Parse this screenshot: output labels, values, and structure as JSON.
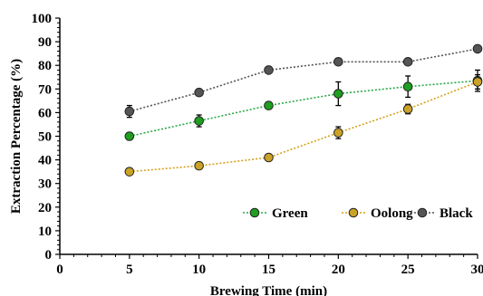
{
  "chart_data": {
    "type": "line",
    "title": "",
    "xlabel": "Brewing Time (min)",
    "ylabel": "Extraction Percentage (%)",
    "xlim": [
      0,
      30
    ],
    "ylim": [
      0,
      100
    ],
    "x_ticks": [
      "0",
      "5",
      "10",
      "15",
      "20",
      "25",
      "30"
    ],
    "y_ticks": [
      "0",
      "10",
      "20",
      "30",
      "40",
      "50",
      "60",
      "70",
      "80",
      "90",
      "100"
    ],
    "x": [
      5,
      10,
      15,
      20,
      25,
      30
    ],
    "grid": false,
    "legend_position": "bottom-right",
    "series": [
      {
        "name": "Green",
        "values": [
          50,
          56.5,
          63,
          68,
          71,
          73.5
        ],
        "errors": [
          1.5,
          2.5,
          1,
          5,
          4.5,
          4.5
        ],
        "color": "#1f9e1f",
        "line_color": "#28a745"
      },
      {
        "name": "Oolong",
        "values": [
          35,
          37.5,
          41,
          51.5,
          61.5,
          73
        ],
        "errors": [
          1,
          1,
          1,
          2.5,
          2,
          3
        ],
        "color": "#c9a227",
        "line_color": "#d4a017"
      },
      {
        "name": "Black",
        "values": [
          60.5,
          68.5,
          78,
          81.5,
          81.5,
          87
        ],
        "errors": [
          2.5,
          1,
          1,
          1,
          1,
          1
        ],
        "color": "#555555",
        "line_color": "#555555"
      }
    ]
  }
}
